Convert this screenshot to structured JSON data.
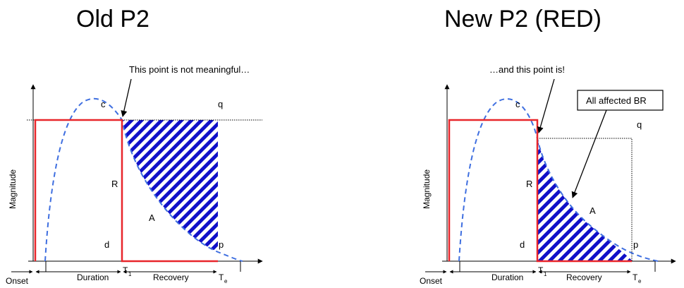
{
  "left": {
    "title": "Old P2",
    "callout": "This point is not meaningful…",
    "labels": {
      "c": "c",
      "q": "q",
      "R": "R",
      "A": "A",
      "d": "d",
      "p": "p"
    },
    "ylabel": "Magnitude",
    "axis": {
      "onset": "Onset",
      "duration": "Duration",
      "t1": "T",
      "t1_sub": "1",
      "recovery": "Recovery",
      "te": "T",
      "te_sub": "e"
    }
  },
  "right": {
    "title": "New P2 (RED)",
    "callout": "…and this point is!",
    "box_label": "All affected BR",
    "labels": {
      "c": "c",
      "q": "q",
      "R": "R",
      "A": "A",
      "d": "d",
      "p": "p"
    },
    "ylabel": "Magnitude",
    "axis": {
      "onset": "Onset",
      "duration": "Duration",
      "t1": "T",
      "t1_sub": "1",
      "recovery": "Recovery",
      "te": "T",
      "te_sub": "e"
    }
  },
  "colors": {
    "red_line": "#e8262b",
    "blue_dash": "#3f6fe0",
    "hatch_blue": "#1010c8"
  }
}
